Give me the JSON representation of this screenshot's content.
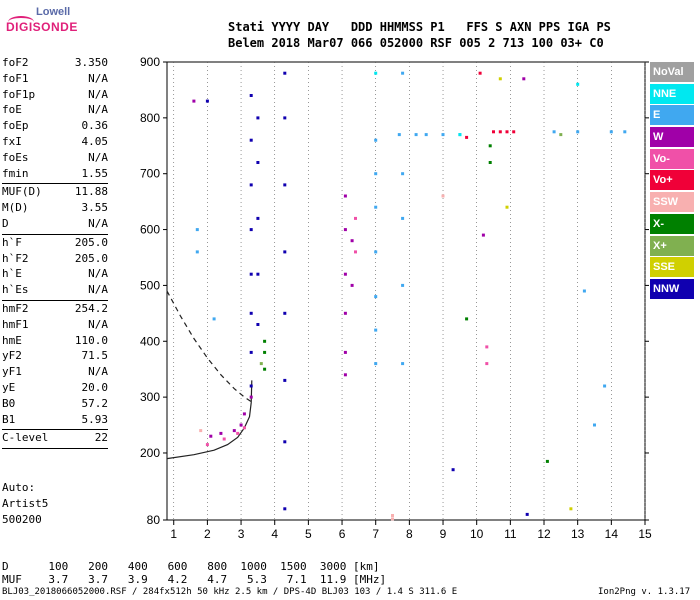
{
  "logo": {
    "top": "Lowell",
    "bottom": "DIGISONDE"
  },
  "header": {
    "line1": "Stati YYYY DAY   DDD HHMMSS P1   FFS S AXN PPS IGA PS",
    "line2": "Belem 2018 Mar07 066 052000 RSF 005 2 713 100 03+ C0"
  },
  "params": [
    {
      "name": "foF2",
      "value": "3.350"
    },
    {
      "name": "foF1",
      "value": "N/A"
    },
    {
      "name": "foF1p",
      "value": "N/A"
    },
    {
      "name": "foE",
      "value": "N/A"
    },
    {
      "name": "foEp",
      "value": "0.36"
    },
    {
      "name": "fxI",
      "value": "4.05"
    },
    {
      "name": "foEs",
      "value": "N/A"
    },
    {
      "name": "fmin",
      "value": "1.55"
    },
    {
      "sep": true
    },
    {
      "name": "MUF(D)",
      "value": "11.88"
    },
    {
      "name": "M(D)",
      "value": "3.55"
    },
    {
      "name": "D",
      "value": "N/A"
    },
    {
      "sep": true
    },
    {
      "name": "h`F",
      "value": "205.0"
    },
    {
      "name": "h`F2",
      "value": "205.0"
    },
    {
      "name": "h`E",
      "value": "N/A"
    },
    {
      "name": "h`Es",
      "value": "N/A"
    },
    {
      "sep": true
    },
    {
      "name": "hmF2",
      "value": "254.2"
    },
    {
      "name": "hmF1",
      "value": "N/A"
    },
    {
      "name": "hmE",
      "value": "110.0"
    },
    {
      "name": "yF2",
      "value": "71.5"
    },
    {
      "name": "yF1",
      "value": "N/A"
    },
    {
      "name": "yE",
      "value": "20.0"
    },
    {
      "name": "B0",
      "value": "57.2"
    },
    {
      "name": "B1",
      "value": "5.93"
    },
    {
      "sep": true
    },
    {
      "name": "C-level",
      "value": "22"
    },
    {
      "sep": true
    }
  ],
  "auto": {
    "line1": "Auto:",
    "line2": "Artist5",
    "line3": "500200"
  },
  "bottom": {
    "d_row": "D      100   200   400   600   800  1000  1500  3000 [km]",
    "muf_row": "MUF    3.7   3.7   3.9   4.2   4.7   5.3   7.1  11.9 [MHz]",
    "footer_left": "BLJ03_2018066052000.RSF / 284fx512h 50 kHz 2.5 km / DPS-4D BLJ03 103 / 1.4 S 311.6 E",
    "footer_right": "Ion2Png v. 1.3.17"
  },
  "legend": [
    {
      "label": "NoVal",
      "color": "#a0a0a0"
    },
    {
      "label": "NNE",
      "color": "#00e8f0"
    },
    {
      "label": "E",
      "color": "#40a8f0"
    },
    {
      "label": "W",
      "color": "#a000a8"
    },
    {
      "label": "Vo-",
      "color": "#f050a8"
    },
    {
      "label": "Vo+",
      "color": "#f00038"
    },
    {
      "label": "SSW",
      "color": "#f8b0b0"
    },
    {
      "label": "X-",
      "color": "#008000"
    },
    {
      "label": "X+",
      "color": "#80b050"
    },
    {
      "label": "SSE",
      "color": "#d0d000"
    },
    {
      "label": "NNW",
      "color": "#1000b0"
    }
  ],
  "chart_data": {
    "type": "scatter",
    "xlim": [
      0.8,
      15
    ],
    "ylim": [
      80,
      900
    ],
    "xticks": [
      1,
      2,
      3,
      4,
      5,
      6,
      7,
      8,
      9,
      10,
      11,
      12,
      13,
      14,
      15
    ],
    "yticks": [
      80,
      200,
      300,
      400,
      500,
      600,
      700,
      800,
      900
    ],
    "grid": "dotted vertical lines at integer MHz",
    "series": [
      {
        "name": "NNW",
        "color": "#1000b0",
        "points": [
          [
            3.3,
            320
          ],
          [
            3.3,
            380
          ],
          [
            3.3,
            450
          ],
          [
            3.3,
            520
          ],
          [
            3.3,
            600
          ],
          [
            3.3,
            680
          ],
          [
            3.3,
            760
          ],
          [
            3.3,
            840
          ],
          [
            3.5,
            430
          ],
          [
            3.5,
            520
          ],
          [
            3.5,
            620
          ],
          [
            3.5,
            720
          ],
          [
            3.5,
            800
          ],
          [
            4.3,
            100
          ],
          [
            4.3,
            220
          ],
          [
            4.3,
            330
          ],
          [
            4.3,
            450
          ],
          [
            4.3,
            560
          ],
          [
            4.3,
            680
          ],
          [
            4.3,
            800
          ],
          [
            4.3,
            880
          ],
          [
            2.0,
            830
          ],
          [
            9.3,
            170
          ],
          [
            11.5,
            90
          ]
        ]
      },
      {
        "name": "W",
        "color": "#a000a8",
        "points": [
          [
            2.1,
            230
          ],
          [
            2.4,
            235
          ],
          [
            2.8,
            240
          ],
          [
            3.0,
            250
          ],
          [
            3.1,
            270
          ],
          [
            3.3,
            300
          ],
          [
            6.1,
            340
          ],
          [
            6.1,
            380
          ],
          [
            6.1,
            450
          ],
          [
            6.1,
            520
          ],
          [
            6.1,
            600
          ],
          [
            6.1,
            660
          ],
          [
            6.3,
            500
          ],
          [
            6.3,
            580
          ],
          [
            10.2,
            590
          ],
          [
            11.4,
            870
          ],
          [
            1.6,
            830
          ]
        ]
      },
      {
        "name": "Vo-",
        "color": "#f050a8",
        "points": [
          [
            2.0,
            215
          ],
          [
            2.5,
            225
          ],
          [
            2.9,
            235
          ],
          [
            3.1,
            245
          ],
          [
            6.4,
            560
          ],
          [
            6.4,
            620
          ],
          [
            10.3,
            360
          ],
          [
            10.3,
            390
          ]
        ]
      },
      {
        "name": "Vo+",
        "color": "#f00038",
        "points": [
          [
            10.5,
            775
          ],
          [
            10.7,
            775
          ],
          [
            10.9,
            775
          ],
          [
            11.1,
            775
          ],
          [
            9.7,
            765
          ],
          [
            10.1,
            880
          ]
        ]
      },
      {
        "name": "E",
        "color": "#40a8f0",
        "points": [
          [
            7.7,
            770
          ],
          [
            8.2,
            770
          ],
          [
            8.5,
            770
          ],
          [
            9.0,
            770
          ],
          [
            9.5,
            770
          ],
          [
            12.3,
            775
          ],
          [
            13.0,
            775
          ],
          [
            14.0,
            775
          ],
          [
            14.4,
            775
          ],
          [
            7.0,
            360
          ],
          [
            7.0,
            420
          ],
          [
            7.0,
            480
          ],
          [
            7.0,
            560
          ],
          [
            7.0,
            640
          ],
          [
            7.0,
            700
          ],
          [
            7.0,
            760
          ],
          [
            7.8,
            360
          ],
          [
            7.8,
            500
          ],
          [
            7.8,
            620
          ],
          [
            7.8,
            700
          ],
          [
            7.8,
            880
          ],
          [
            1.7,
            560
          ],
          [
            1.7,
            600
          ],
          [
            2.2,
            440
          ],
          [
            13.2,
            490
          ],
          [
            13.5,
            250
          ],
          [
            13.8,
            320
          ]
        ]
      },
      {
        "name": "X-",
        "color": "#008000",
        "points": [
          [
            3.7,
            350
          ],
          [
            3.7,
            380
          ],
          [
            3.7,
            400
          ],
          [
            10.4,
            720
          ],
          [
            10.4,
            750
          ],
          [
            12.1,
            185
          ],
          [
            9.7,
            440
          ]
        ]
      },
      {
        "name": "X+",
        "color": "#80b050",
        "points": [
          [
            3.6,
            360
          ],
          [
            12.5,
            770
          ]
        ]
      },
      {
        "name": "SSW",
        "color": "#f8b0b0",
        "points": [
          [
            7.5,
            82
          ],
          [
            7.5,
            88
          ],
          [
            1.8,
            240
          ],
          [
            9.0,
            660
          ]
        ]
      },
      {
        "name": "SSE",
        "color": "#d0d000",
        "points": [
          [
            10.7,
            870
          ],
          [
            12.8,
            100
          ],
          [
            10.9,
            640
          ]
        ]
      },
      {
        "name": "NNE",
        "color": "#00e8f0",
        "points": [
          [
            7.0,
            880
          ],
          [
            9.5,
            770
          ],
          [
            13.0,
            860
          ]
        ]
      }
    ],
    "curves": [
      {
        "name": "solid-trace",
        "style": "solid",
        "points": [
          [
            0.8,
            190
          ],
          [
            1.6,
            197
          ],
          [
            2.2,
            205
          ],
          [
            2.6,
            215
          ],
          [
            2.9,
            228
          ],
          [
            3.1,
            245
          ],
          [
            3.25,
            265
          ],
          [
            3.3,
            290
          ],
          [
            3.32,
            330
          ]
        ]
      },
      {
        "name": "dashed-trace",
        "style": "dashed",
        "points": [
          [
            0.8,
            490
          ],
          [
            1.2,
            445
          ],
          [
            1.6,
            405
          ],
          [
            2.0,
            370
          ],
          [
            2.4,
            340
          ],
          [
            2.8,
            315
          ],
          [
            3.1,
            300
          ],
          [
            3.3,
            292
          ]
        ]
      }
    ]
  }
}
